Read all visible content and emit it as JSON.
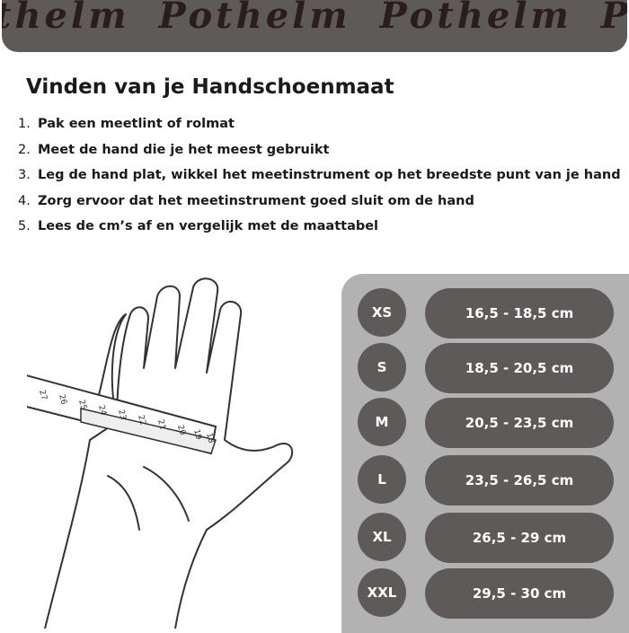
{
  "banner": {
    "brand": "Pothelm",
    "repeat_text": "thelm Pothelm Pothelm Pothe"
  },
  "title": "Vinden van je Handschoenmaat",
  "steps": [
    {
      "n": "1.",
      "text": "Pak een meetlint of rolmat"
    },
    {
      "n": "2.",
      "text": "Meet de hand die je het meest gebruikt"
    },
    {
      "n": "3.",
      "text": "Leg de hand plat, wikkel het meetinstrument op het breedste punt van je hand"
    },
    {
      "n": "4.",
      "text": "Zorg ervoor dat het meetinstrument goed sluit om de hand"
    },
    {
      "n": "5.",
      "text": "Lees de cm’s af en vergelijk met de maattabel"
    }
  ],
  "tape_marks": [
    "27",
    "26",
    "25",
    "24",
    "23",
    "22",
    "21",
    "20",
    "19",
    "18"
  ],
  "sizes": [
    {
      "size": "XS",
      "range": "16,5 - 18,5 cm"
    },
    {
      "size": "S",
      "range": "18,5 - 20,5 cm"
    },
    {
      "size": "M",
      "range": "20,5 - 23,5 cm"
    },
    {
      "size": "L",
      "range": "23,5 - 26,5 cm"
    },
    {
      "size": "XL",
      "range": "26,5 - 29 cm"
    },
    {
      "size": "XXL",
      "range": "29,5 - 30 cm"
    }
  ],
  "colors": {
    "banner": "#5e5a5a",
    "panel": "#b3b2b2",
    "pill": "#5e5a59",
    "brand_text": "#2a1d1d"
  }
}
